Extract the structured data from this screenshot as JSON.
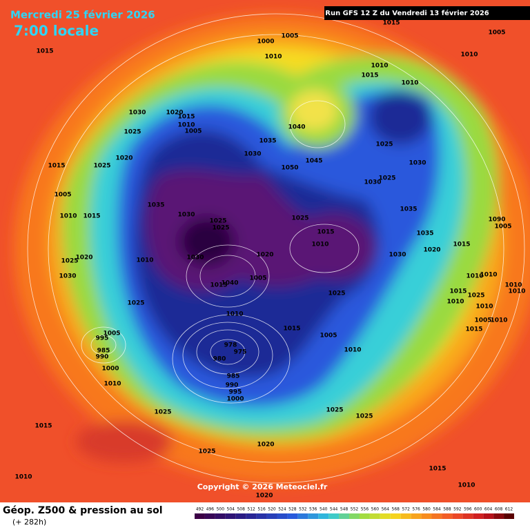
{
  "header": {
    "date": "Mercredi 25 février 2026",
    "time": "7:00 locale",
    "run": "Run GFS 12 Z du Vendredi 13 février 2026"
  },
  "map": {
    "copyright": "Copyright © 2026 Meteociel.fr",
    "pressure_labels": [
      1015,
      1005,
      1005,
      1000,
      1015,
      1010,
      1010,
      1010,
      1015,
      1010,
      1030,
      1020,
      1015,
      1010,
      1005,
      1025,
      1040,
      1035,
      1025,
      1030,
      1020,
      1045,
      1015,
      1025,
      1050,
      1030,
      1030,
      1025,
      1005,
      1035,
      1035,
      1010,
      1015,
      1030,
      1025,
      1025,
      1025,
      1015,
      1090,
      1005,
      1035,
      1010,
      1015,
      1020,
      1020,
      1025,
      1030,
      1020,
      1030,
      1010,
      1030,
      1015,
      1040,
      1005,
      1025,
      1010,
      1010,
      1010,
      1010,
      1015,
      1025,
      1010,
      1010,
      1025,
      1010,
      1005,
      1010,
      1015,
      1015,
      1005,
      995,
      985,
      990,
      1005,
      978,
      975,
      980,
      1010,
      1000,
      985,
      990,
      995,
      1000,
      1010,
      1025,
      1025,
      1025,
      1015,
      1025,
      1020,
      1015,
      1010,
      1010,
      1020
    ]
  },
  "legend": {
    "title": "Géop. Z500 & pression au sol",
    "lead_time": "(+ 282h)",
    "scale": [
      492,
      496,
      500,
      504,
      508,
      512,
      516,
      520,
      524,
      528,
      532,
      536,
      540,
      544,
      548,
      552,
      556,
      560,
      564,
      568,
      572,
      576,
      580,
      584,
      588,
      592,
      596,
      600,
      604,
      608,
      612
    ]
  }
}
